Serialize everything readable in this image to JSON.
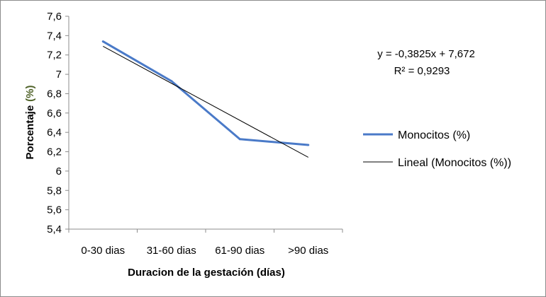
{
  "chart_data": {
    "type": "line",
    "xlabel": "Duracion de la gestación (días)",
    "ylabel": "Porcentaje",
    "ylabel_unit": "(%)",
    "categories": [
      "0-30 dias",
      "31-60 dias",
      "61-90 dias",
      ">90 dias"
    ],
    "ylim": [
      5.4,
      7.6
    ],
    "ytick_step": 0.2,
    "ytick_labels": [
      "7,6",
      "7,4",
      "7,2",
      "7",
      "6,8",
      "6,6",
      "6,4",
      "6,2",
      "6",
      "5,8",
      "5,6",
      "5,4"
    ],
    "series": [
      {
        "name": "Monocitos (%)",
        "values": [
          7.34,
          6.93,
          6.33,
          6.27
        ],
        "color": "#4a7ac8"
      }
    ],
    "trendline": {
      "name": "Lineal (Monocitos (%))",
      "slope": -0.3825,
      "intercept": 7.672,
      "color": "#000000",
      "equation": "y = -0,3825x + 7,672",
      "r_squared": "R² = 0,9293"
    },
    "grid": false,
    "legend_position": "right"
  }
}
